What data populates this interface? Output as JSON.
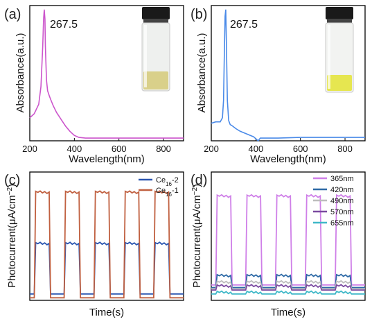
{
  "colors": {
    "panel_a": "#cc55cc",
    "panel_b": "#4a8ae8",
    "ce16_2": "#2a55b0",
    "ce16_1": "#c06040",
    "nm365": "#cf7fe8",
    "nm420": "#2e6aa6",
    "nm490": "#bdbdbd",
    "nm570": "#7b4aa0",
    "nm655": "#3fb8c8"
  },
  "chart_data": [
    {
      "panel": "(a)",
      "type": "line",
      "xlabel": "Wavelength(nm)",
      "ylabel": "Absorbance(a.u.)",
      "xlim": [
        200,
        890
      ],
      "ylim": [
        0,
        1.0
      ],
      "xticks": [
        200,
        400,
        600,
        800
      ],
      "annotation": "267.5",
      "series": [
        {
          "x": [
            200,
            220,
            240,
            250,
            258,
            262,
            265,
            268,
            270,
            275,
            280,
            288,
            295,
            305,
            320,
            340,
            360,
            380,
            400,
            420,
            450,
            500,
            600,
            700,
            800,
            890
          ],
          "y": [
            0.17,
            0.2,
            0.27,
            0.4,
            0.7,
            0.9,
            0.97,
            0.9,
            0.7,
            0.45,
            0.37,
            0.33,
            0.3,
            0.26,
            0.21,
            0.16,
            0.11,
            0.07,
            0.04,
            0.025,
            0.02,
            0.02,
            0.02,
            0.02,
            0.02,
            0.02
          ]
        }
      ]
    },
    {
      "panel": "(b)",
      "type": "line",
      "xlabel": "Wavelength(nm)",
      "ylabel": "Absorbance(a.u.)",
      "xlim": [
        200,
        890
      ],
      "ylim": [
        0,
        1.0
      ],
      "xticks": [
        200,
        400,
        600,
        800
      ],
      "annotation": "267.5",
      "series": [
        {
          "x": [
            200,
            220,
            240,
            250,
            255,
            258,
            262,
            265,
            268,
            272,
            278,
            285,
            295,
            310,
            330,
            360,
            390,
            410,
            420,
            430,
            450,
            500,
            600,
            700,
            800,
            890
          ],
          "y": [
            0.13,
            0.14,
            0.14,
            0.17,
            0.3,
            0.6,
            0.92,
            0.97,
            0.7,
            0.3,
            0.15,
            0.12,
            0.11,
            0.09,
            0.07,
            0.05,
            0.03,
            0.0,
            0.02,
            0.02,
            0.02,
            0.02,
            0.025,
            0.025,
            0.025,
            0.025
          ]
        }
      ]
    },
    {
      "panel": "(c)",
      "type": "line",
      "xlabel": "Time(s)",
      "ylabel": "Photocurrent(μA/cm⁻²)",
      "cycles": 5,
      "series": [
        {
          "name": "Ce16-2",
          "name_base": "Ce",
          "name_sub": "16",
          "name_suffix": "-2",
          "off": 0.05,
          "on": 0.45
        },
        {
          "name": "Ce16-1",
          "name_base": "Ce",
          "name_sub": "16",
          "name_suffix": "-1",
          "off": 0.02,
          "on": 0.85
        }
      ]
    },
    {
      "panel": "(d)",
      "type": "line",
      "xlabel": "Time(s)",
      "ylabel": "Photocurrent(μA/cm⁻²)",
      "cycles": 5,
      "series": [
        {
          "name": "365nm",
          "off": 0.12,
          "on": 0.82
        },
        {
          "name": "420nm",
          "off": 0.1,
          "on": 0.2
        },
        {
          "name": "490nm",
          "off": 0.09,
          "on": 0.15
        },
        {
          "name": "570nm",
          "off": 0.08,
          "on": 0.12
        },
        {
          "name": "655nm",
          "off": 0.05,
          "on": 0.07
        }
      ]
    }
  ]
}
